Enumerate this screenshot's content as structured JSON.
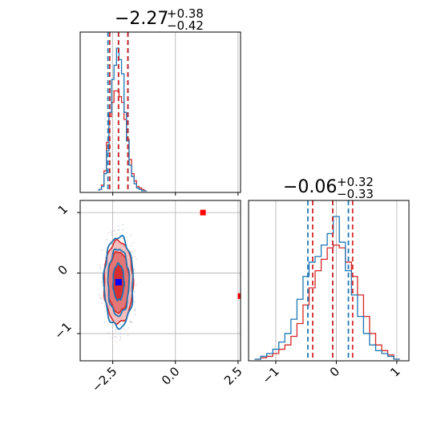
{
  "chart_data": [
    {
      "type": "histogram",
      "panel": "top-left marginal",
      "title_main": "−2.27",
      "title_sup": "+0.38",
      "title_sub": "−0.42",
      "xlim": [
        -3.8,
        2.6
      ],
      "x_ticks": [
        -2.5,
        0.0,
        2.5
      ],
      "grid": true,
      "series": [
        {
          "color": "#1f77b4",
          "quantile_lines": [
            -2.69,
            -2.27,
            -1.89
          ]
        },
        {
          "color": "#d62728",
          "quantile_lines": [
            -2.62,
            -2.27,
            -1.9
          ]
        }
      ],
      "bin_x": [
        -3.0,
        -2.9,
        -2.8,
        -2.7,
        -2.6,
        -2.5,
        -2.4,
        -2.3,
        -2.2,
        -2.1,
        -2.0,
        -1.9,
        -1.8,
        -1.7,
        -1.6,
        -1.5,
        -1.4,
        -1.3,
        -1.2
      ],
      "blue_counts": [
        0.01,
        0.03,
        0.12,
        0.28,
        0.55,
        0.78,
        0.88,
        1.0,
        0.92,
        0.82,
        0.55,
        0.35,
        0.18,
        0.1,
        0.05,
        0.02,
        0.01,
        0.0,
        0.0
      ],
      "red_counts": [
        0.01,
        0.04,
        0.14,
        0.34,
        0.52,
        0.62,
        0.7,
        0.7,
        0.66,
        0.62,
        0.5,
        0.36,
        0.22,
        0.12,
        0.07,
        0.03,
        0.02,
        0.01,
        0.0
      ]
    },
    {
      "type": "contour",
      "panel": "bottom-left 2D",
      "xlim": [
        -3.8,
        2.6
      ],
      "ylim": [
        -1.45,
        1.2
      ],
      "x_ticks": [
        -2.5,
        0.0,
        2.5
      ],
      "x_tick_labels": [
        "−2.5",
        "0.0",
        "2.5"
      ],
      "y_ticks": [
        -1,
        0,
        1
      ],
      "y_tick_labels": [
        "−1",
        "0",
        "1"
      ],
      "grid": true,
      "center": {
        "x": -2.27,
        "y": -0.15
      },
      "markers": [
        {
          "x": -2.27,
          "y": -0.15,
          "color": "#0000ff"
        },
        {
          "x": 1.1,
          "y": 1.0,
          "color": "#ff0000"
        },
        {
          "x": 2.6,
          "y": -0.38,
          "color": "#ff0000"
        }
      ],
      "red_contours": [
        {
          "rx": 0.2,
          "ry": 0.28,
          "fill": "#d62728",
          "opacity": 0.9
        },
        {
          "rx": 0.42,
          "ry": 0.5,
          "fill": "#e05c5c",
          "opacity": 0.75
        },
        {
          "rx": 0.58,
          "ry": 0.68,
          "fill": "#f4b4b4",
          "opacity": 0.85
        }
      ],
      "blue_contours": [
        {
          "rx": 0.22,
          "ry": 0.3
        },
        {
          "rx": 0.42,
          "ry": 0.55
        },
        {
          "rx": 0.58,
          "ry": 0.75
        }
      ]
    },
    {
      "type": "histogram",
      "panel": "bottom-right marginal",
      "title_main": "−0.06",
      "title_sup": "+0.32",
      "title_sub": "−0.33",
      "xlim": [
        -1.45,
        1.2
      ],
      "x_ticks": [
        -1,
        0,
        1
      ],
      "x_tick_labels": [
        "−1",
        "0",
        "1"
      ],
      "grid": true,
      "series": [
        {
          "color": "#1f77b4",
          "quantile_lines": [
            -0.47,
            -0.06,
            0.2
          ]
        },
        {
          "color": "#d62728",
          "quantile_lines": [
            -0.39,
            -0.06,
            0.27
          ]
        }
      ],
      "bin_x": [
        -1.3,
        -1.2,
        -1.1,
        -1.0,
        -0.9,
        -0.8,
        -0.7,
        -0.6,
        -0.5,
        -0.4,
        -0.3,
        -0.2,
        -0.1,
        0.0,
        0.1,
        0.2,
        0.3,
        0.4,
        0.5,
        0.6,
        0.7,
        0.8,
        0.9,
        1.0
      ],
      "blue_counts": [
        0.0,
        0.02,
        0.04,
        0.07,
        0.12,
        0.18,
        0.28,
        0.42,
        0.58,
        0.68,
        0.72,
        0.8,
        0.88,
        1.0,
        0.82,
        0.62,
        0.45,
        0.3,
        0.18,
        0.1,
        0.06,
        0.04,
        0.02,
        0.0
      ],
      "red_counts": [
        0.0,
        0.01,
        0.02,
        0.04,
        0.07,
        0.1,
        0.16,
        0.25,
        0.38,
        0.5,
        0.62,
        0.7,
        0.78,
        0.8,
        0.78,
        0.68,
        0.58,
        0.45,
        0.3,
        0.18,
        0.1,
        0.06,
        0.03,
        0.0
      ]
    }
  ]
}
